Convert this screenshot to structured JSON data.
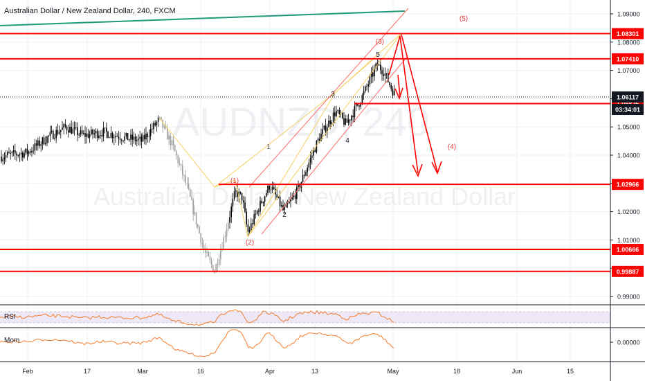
{
  "header": {
    "title": "Australian Dollar / New Zealand Dollar, 240, FXCM"
  },
  "watermark": {
    "symbol": "AUDNZD, 240",
    "name": "Australian Dollar / New Zealand Dollar"
  },
  "indicators": {
    "rsi_label": "RSI",
    "mom_label": "Mom",
    "mom_tick": "0.00000"
  },
  "colors": {
    "level_line": "#ff0000",
    "price_label_bg": "#ff0000",
    "channel": "#ff6b6b",
    "harmonic": "#f5d060",
    "trend": "#1e9a7a",
    "rsi": "#f57c2b",
    "mom": "#f57c2b",
    "candles": "#000000"
  },
  "chart_data": {
    "type": "candlestick",
    "title": "Australian Dollar / New Zealand Dollar, 240, FXCM",
    "x_ticks": [
      "Feb",
      "17",
      "Mar",
      "16",
      "Apr",
      "13",
      "May",
      "18",
      "Jun",
      "15"
    ],
    "y_ticks": [
      "1.09000",
      "1.08000",
      "1.07000",
      "1.06000",
      "1.05000",
      "1.04000",
      "1.03000",
      "1.02000",
      "1.01000",
      "1.00000",
      "0.99000"
    ],
    "ylim": [
      0.985,
      1.095
    ],
    "current_price": "1.06117",
    "countdown": "03:34:01",
    "horizontal_levels": [
      "1.08301",
      "1.07410",
      "1.05826",
      "1.02966",
      "1.00666",
      "0.99887"
    ],
    "wave_labels": [
      "(1)",
      "(2)",
      "(3)",
      "(4)",
      "(5)",
      "1",
      "2",
      "3",
      "4",
      "5"
    ],
    "grid": true,
    "legend": "none"
  }
}
